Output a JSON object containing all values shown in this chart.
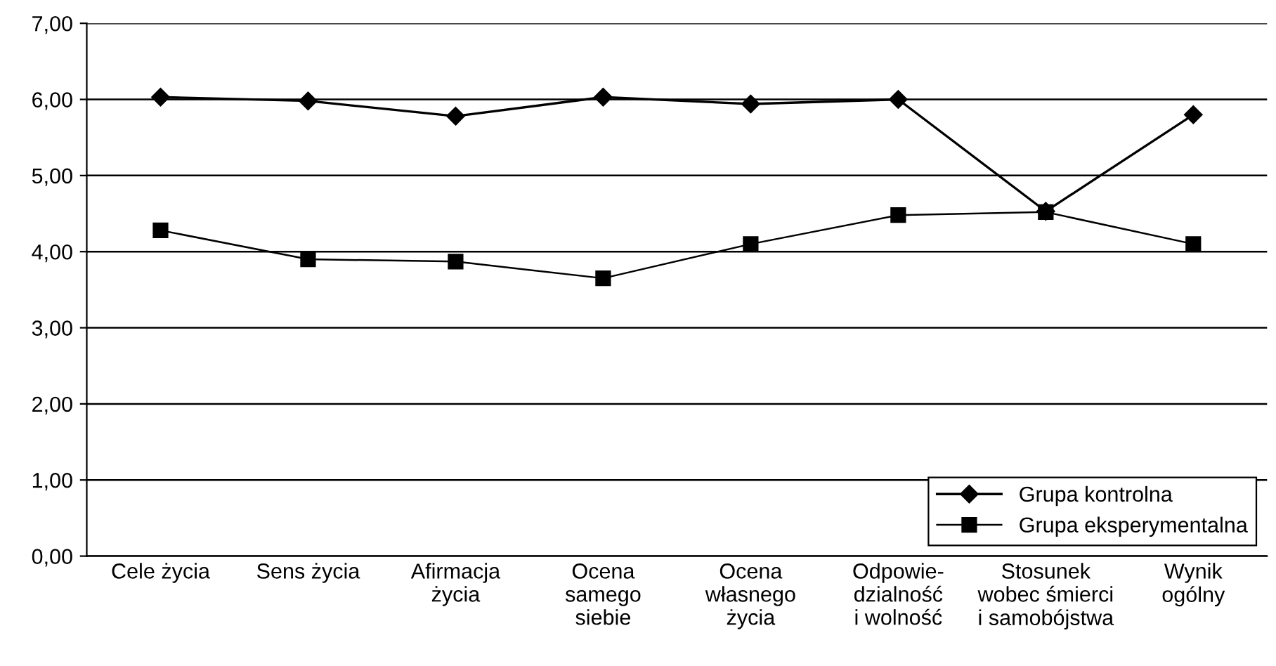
{
  "chart_data": {
    "type": "line",
    "categories": [
      "Cele życia",
      "Sens życia",
      "Afirmacja\nżycia",
      "Ocena\nsamego\nsiebie",
      "Ocena\nwłasnego\nżycia",
      "Odpowie-\ndzialność\ni wolność",
      "Stosunek\nwobec śmierci\ni samobójstwa",
      "Wynik\nogólny"
    ],
    "series": [
      {
        "name": "Grupa kontrolna",
        "color": "#000000",
        "marker": "diamond",
        "values": [
          6.03,
          5.98,
          5.78,
          6.03,
          5.94,
          6.0,
          4.53,
          5.8
        ]
      },
      {
        "name": "Grupa eksperymentalna",
        "color": "#000000",
        "marker": "square",
        "values": [
          4.28,
          3.9,
          3.87,
          3.65,
          4.1,
          4.48,
          4.52,
          4.1
        ]
      }
    ],
    "ylim": [
      0,
      7
    ],
    "yticks": [
      {
        "value": 0,
        "label": "0,00"
      },
      {
        "value": 1,
        "label": "1,00"
      },
      {
        "value": 2,
        "label": "2,00"
      },
      {
        "value": 3,
        "label": "3,00"
      },
      {
        "value": 4,
        "label": "4,00"
      },
      {
        "value": 5,
        "label": "5,00"
      },
      {
        "value": 6,
        "label": "6,00"
      },
      {
        "value": 7,
        "label": "7,00"
      }
    ],
    "grid": "y",
    "legend": "bottom right",
    "line_style": "solid"
  }
}
